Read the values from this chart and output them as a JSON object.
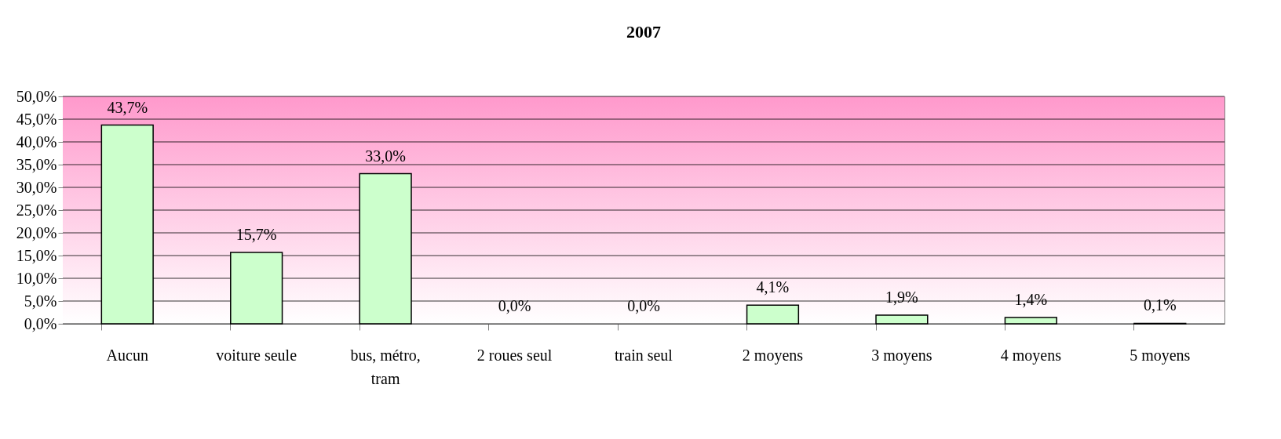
{
  "chart_data": {
    "type": "bar",
    "title": "2007",
    "categories": [
      "Aucun",
      "voiture seule",
      "bus, métro, tram",
      "2 roues seul",
      "train seul",
      "2 moyens",
      "3 moyens",
      "4 moyens",
      "5 moyens"
    ],
    "values": [
      43.7,
      15.7,
      33.0,
      0.0,
      0.0,
      4.1,
      1.9,
      1.4,
      0.1
    ],
    "value_labels": [
      "43,7%",
      "15,7%",
      "33,0%",
      "0,0%",
      "0,0%",
      "4,1%",
      "1,9%",
      "1,4%",
      "0,1%"
    ],
    "color": "#ccffcc",
    "ylim": [
      0,
      50
    ],
    "yticks": [
      {
        "value": 0,
        "label": "0,0%"
      },
      {
        "value": 5,
        "label": "5,0%"
      },
      {
        "value": 10,
        "label": "10,0%"
      },
      {
        "value": 15,
        "label": "15,0%"
      },
      {
        "value": 20,
        "label": "20,0%"
      },
      {
        "value": 25,
        "label": "25,0%"
      },
      {
        "value": 30,
        "label": "30,0%"
      },
      {
        "value": 35,
        "label": "35,0%"
      },
      {
        "value": 40,
        "label": "40,0%"
      },
      {
        "value": 45,
        "label": "45,0%"
      },
      {
        "value": 50,
        "label": "50,0%"
      }
    ],
    "grid": "y"
  }
}
